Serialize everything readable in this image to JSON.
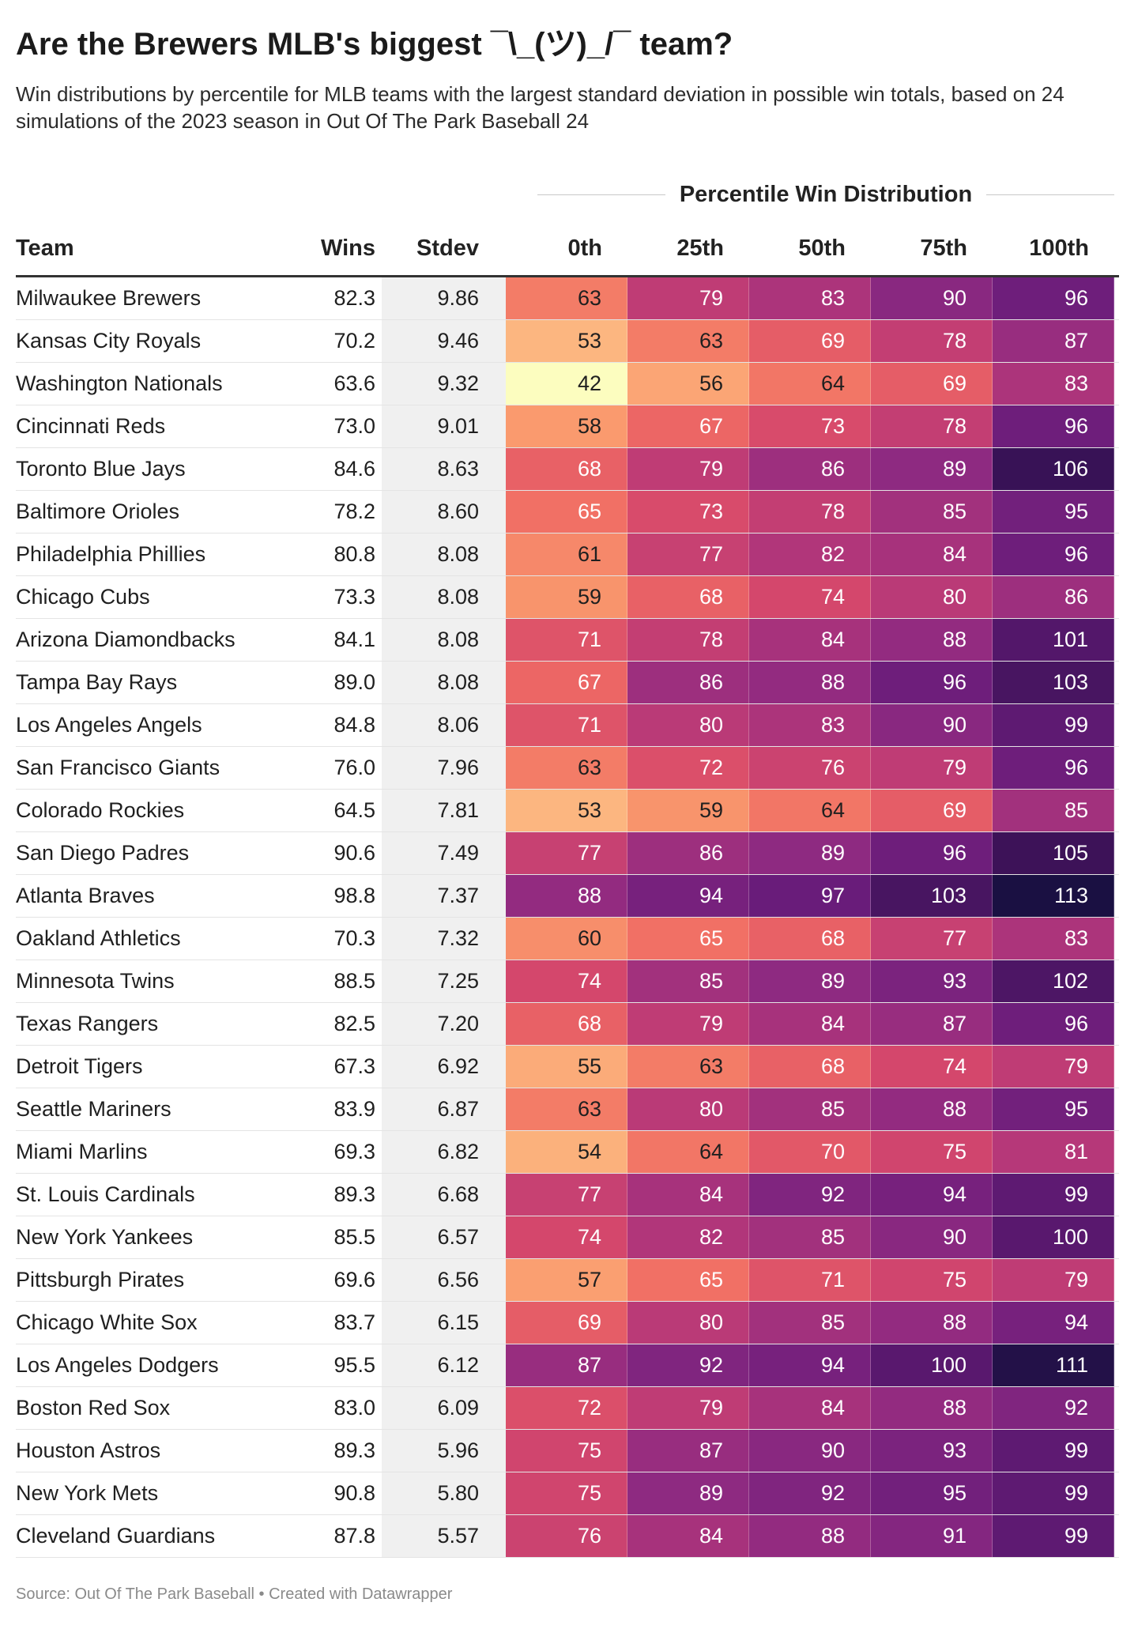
{
  "title": "Are the Brewers MLB's biggest ¯\\_(ツ)_/¯ team?",
  "subtitle": "Win distributions by percentile for MLB teams with the largest standard deviation in possible win totals, based on 24 simulations of the 2023 season in Out Of The Park Baseball 24",
  "group_header": "Percentile Win Distribution",
  "footer": "Source: Out Of The Park Baseball • Created with Datawrapper",
  "chart_data": {
    "type": "table",
    "columns": [
      "Team",
      "Wins",
      "Stdev",
      "0th",
      "25th",
      "50th",
      "75th",
      "100th"
    ],
    "color_scale": {
      "min": 42,
      "max": 113,
      "low_color": "#fcfdbf",
      "high_color": "#1a1042"
    },
    "rows": [
      [
        "Milwaukee Brewers",
        "82.3",
        "9.86",
        63,
        79,
        83,
        90,
        96
      ],
      [
        "Kansas City Royals",
        "70.2",
        "9.46",
        53,
        63,
        69,
        78,
        87
      ],
      [
        "Washington Nationals",
        "63.6",
        "9.32",
        42,
        56,
        64,
        69,
        83
      ],
      [
        "Cincinnati Reds",
        "73.0",
        "9.01",
        58,
        67,
        73,
        78,
        96
      ],
      [
        "Toronto Blue Jays",
        "84.6",
        "8.63",
        68,
        79,
        86,
        89,
        106
      ],
      [
        "Baltimore Orioles",
        "78.2",
        "8.60",
        65,
        73,
        78,
        85,
        95
      ],
      [
        "Philadelphia Phillies",
        "80.8",
        "8.08",
        61,
        77,
        82,
        84,
        96
      ],
      [
        "Chicago Cubs",
        "73.3",
        "8.08",
        59,
        68,
        74,
        80,
        86
      ],
      [
        "Arizona Diamondbacks",
        "84.1",
        "8.08",
        71,
        78,
        84,
        88,
        101
      ],
      [
        "Tampa Bay Rays",
        "89.0",
        "8.08",
        67,
        86,
        88,
        96,
        103
      ],
      [
        "Los Angeles Angels",
        "84.8",
        "8.06",
        71,
        80,
        83,
        90,
        99
      ],
      [
        "San Francisco Giants",
        "76.0",
        "7.96",
        63,
        72,
        76,
        79,
        96
      ],
      [
        "Colorado Rockies",
        "64.5",
        "7.81",
        53,
        59,
        64,
        69,
        85
      ],
      [
        "San Diego Padres",
        "90.6",
        "7.49",
        77,
        86,
        89,
        96,
        105
      ],
      [
        "Atlanta Braves",
        "98.8",
        "7.37",
        88,
        94,
        97,
        103,
        113
      ],
      [
        "Oakland Athletics",
        "70.3",
        "7.32",
        60,
        65,
        68,
        77,
        83
      ],
      [
        "Minnesota Twins",
        "88.5",
        "7.25",
        74,
        85,
        89,
        93,
        102
      ],
      [
        "Texas Rangers",
        "82.5",
        "7.20",
        68,
        79,
        84,
        87,
        96
      ],
      [
        "Detroit Tigers",
        "67.3",
        "6.92",
        55,
        63,
        68,
        74,
        79
      ],
      [
        "Seattle Mariners",
        "83.9",
        "6.87",
        63,
        80,
        85,
        88,
        95
      ],
      [
        "Miami Marlins",
        "69.3",
        "6.82",
        54,
        64,
        70,
        75,
        81
      ],
      [
        "St. Louis Cardinals",
        "89.3",
        "6.68",
        77,
        84,
        92,
        94,
        99
      ],
      [
        "New York Yankees",
        "85.5",
        "6.57",
        74,
        82,
        85,
        90,
        100
      ],
      [
        "Pittsburgh Pirates",
        "69.6",
        "6.56",
        57,
        65,
        71,
        75,
        79
      ],
      [
        "Chicago White Sox",
        "83.7",
        "6.15",
        69,
        80,
        85,
        88,
        94
      ],
      [
        "Los Angeles Dodgers",
        "95.5",
        "6.12",
        87,
        92,
        94,
        100,
        111
      ],
      [
        "Boston Red Sox",
        "83.0",
        "6.09",
        72,
        79,
        84,
        88,
        92
      ],
      [
        "Houston Astros",
        "89.3",
        "5.96",
        75,
        87,
        90,
        93,
        99
      ],
      [
        "New York Mets",
        "90.8",
        "5.80",
        75,
        89,
        92,
        95,
        99
      ],
      [
        "Cleveland Guardians",
        "87.8",
        "5.57",
        76,
        84,
        88,
        91,
        99
      ]
    ]
  }
}
